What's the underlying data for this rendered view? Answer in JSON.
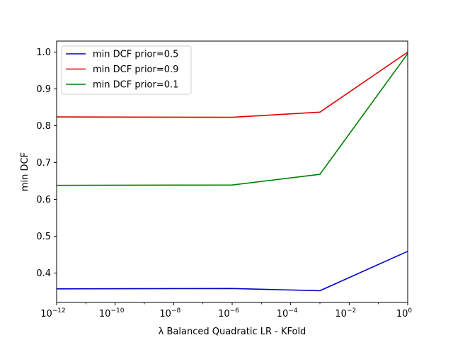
{
  "chart_data": {
    "type": "line",
    "xscale": "log",
    "x": [
      1e-12,
      1e-06,
      0.001,
      1
    ],
    "xlim": [
      1e-12,
      1
    ],
    "ylim": [
      0.32,
      1.03
    ],
    "xticks": [
      {
        "mantissa": "10",
        "exp": "−12"
      },
      {
        "mantissa": "10",
        "exp": "−10"
      },
      {
        "mantissa": "10",
        "exp": "−8"
      },
      {
        "mantissa": "10",
        "exp": "−6"
      },
      {
        "mantissa": "10",
        "exp": "−4"
      },
      {
        "mantissa": "10",
        "exp": "−2"
      },
      {
        "mantissa": "10",
        "exp": "0"
      }
    ],
    "xtick_values": [
      1e-12,
      1e-10,
      1e-08,
      1e-06,
      0.0001,
      0.01,
      1
    ],
    "yticks": [
      "0.4",
      "0.5",
      "0.6",
      "0.7",
      "0.8",
      "0.9",
      "1.0"
    ],
    "ytick_values": [
      0.4,
      0.5,
      0.6,
      0.7,
      0.8,
      0.9,
      1.0
    ],
    "xlabel": "λ Balanced Quadratic LR - KFold",
    "ylabel": "min DCF",
    "grid": false,
    "legend_position": "top-left",
    "series": [
      {
        "name": "min DCF prior=0.5",
        "color": "#0000cc",
        "values": [
          0.357,
          0.358,
          0.352,
          0.459
        ]
      },
      {
        "name": "min DCF prior=0.9",
        "color": "#dd0000",
        "values": [
          0.824,
          0.823,
          0.837,
          1.0
        ]
      },
      {
        "name": "min DCF prior=0.1",
        "color": "#008000",
        "values": [
          0.638,
          0.639,
          0.668,
          0.996
        ]
      }
    ]
  }
}
